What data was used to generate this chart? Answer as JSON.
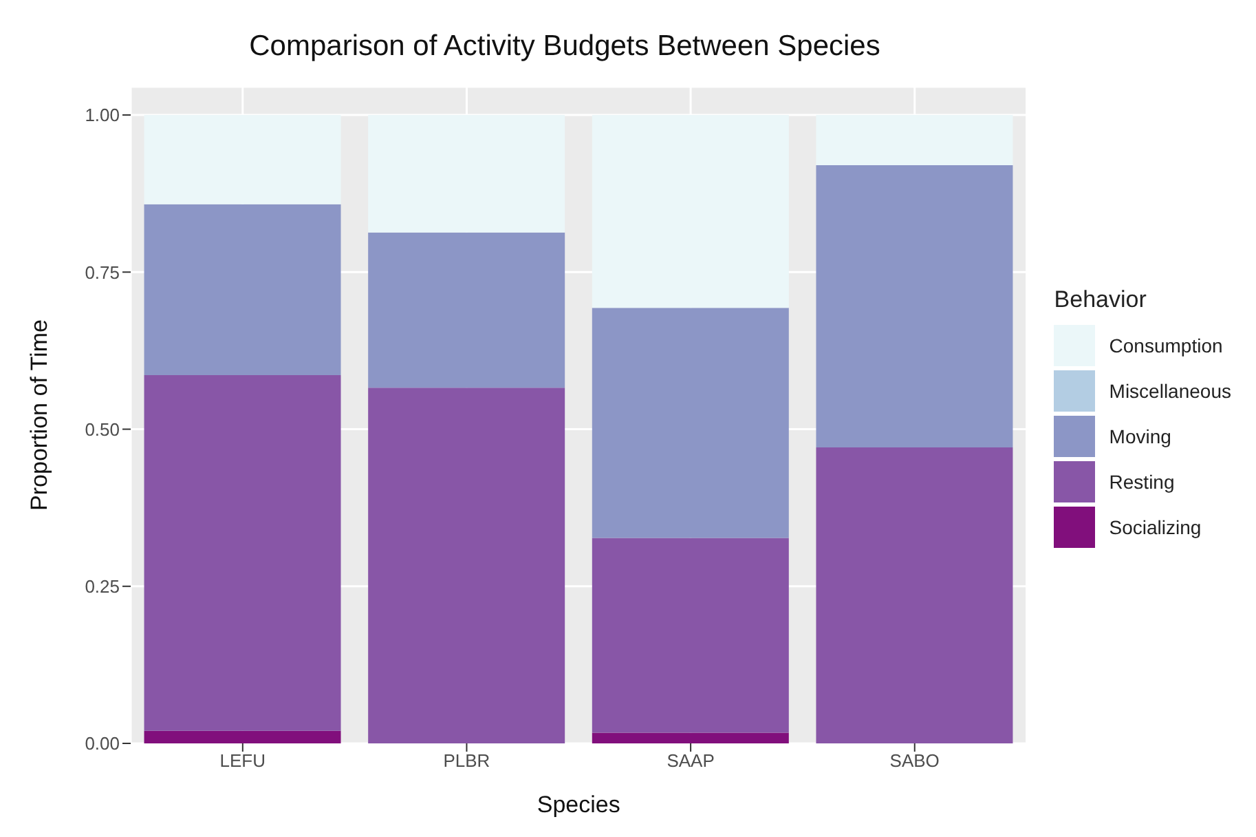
{
  "chart_data": {
    "type": "bar",
    "title": "Comparison of Activity Budgets Between Species",
    "xlabel": "Species",
    "ylabel": "Proportion of Time",
    "legend_title": "Behavior",
    "categories": [
      "LEFU",
      "PLBR",
      "SAAP",
      "SABO"
    ],
    "stacked": true,
    "series": [
      {
        "name": "Socializing",
        "color": "#810f7c",
        "values": [
          0.02,
          0,
          0.017,
          0
        ]
      },
      {
        "name": "Resting",
        "color": "#8856a7",
        "values": [
          0.566,
          0.566,
          0.31,
          0.471
        ]
      },
      {
        "name": "Moving",
        "color": "#8c96c6",
        "values": [
          0.272,
          0.247,
          0.366,
          0.449
        ]
      },
      {
        "name": "Miscellaneous",
        "color": "#b3cde3",
        "values": [
          0,
          0,
          0,
          0
        ]
      },
      {
        "name": "Consumption",
        "color": "#ebf7f9",
        "values": [
          0.142,
          0.187,
          0.307,
          0.08
        ]
      }
    ],
    "ylim": [
      0,
      1.045
    ],
    "yticks": [
      {
        "value": 0,
        "label": "0.00"
      },
      {
        "value": 0.25,
        "label": "0.25"
      },
      {
        "value": 0.5,
        "label": "0.50"
      },
      {
        "value": 0.75,
        "label": "0.75"
      },
      {
        "value": 1,
        "label": "1.00"
      }
    ],
    "grid": true,
    "legend": "right"
  }
}
